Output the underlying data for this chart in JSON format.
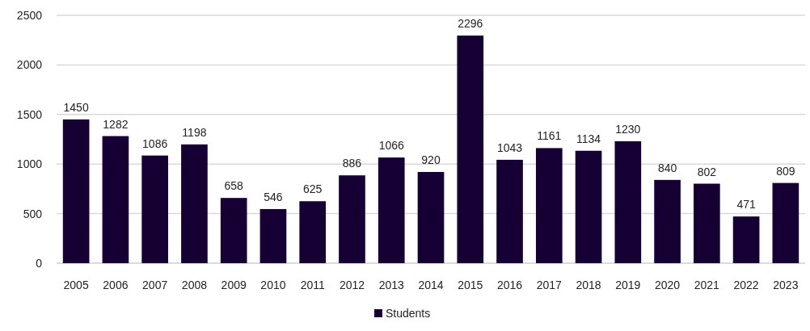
{
  "chart_data": {
    "type": "bar",
    "categories": [
      "2005",
      "2006",
      "2007",
      "2008",
      "2009",
      "2010",
      "2011",
      "2012",
      "2013",
      "2014",
      "2015",
      "2016",
      "2017",
      "2018",
      "2019",
      "2020",
      "2021",
      "2022",
      "2023"
    ],
    "series": [
      {
        "name": "Students",
        "color": "#160033",
        "values": [
          1450,
          1282,
          1086,
          1198,
          658,
          546,
          625,
          886,
          1066,
          920,
          2296,
          1043,
          1161,
          1134,
          1230,
          840,
          802,
          471,
          809
        ]
      }
    ],
    "ylim": [
      0,
      2500
    ],
    "yticks": [
      0,
      500,
      1000,
      1500,
      2000,
      2500
    ],
    "grid": "y",
    "data_labels": true,
    "legend": "bottom"
  }
}
